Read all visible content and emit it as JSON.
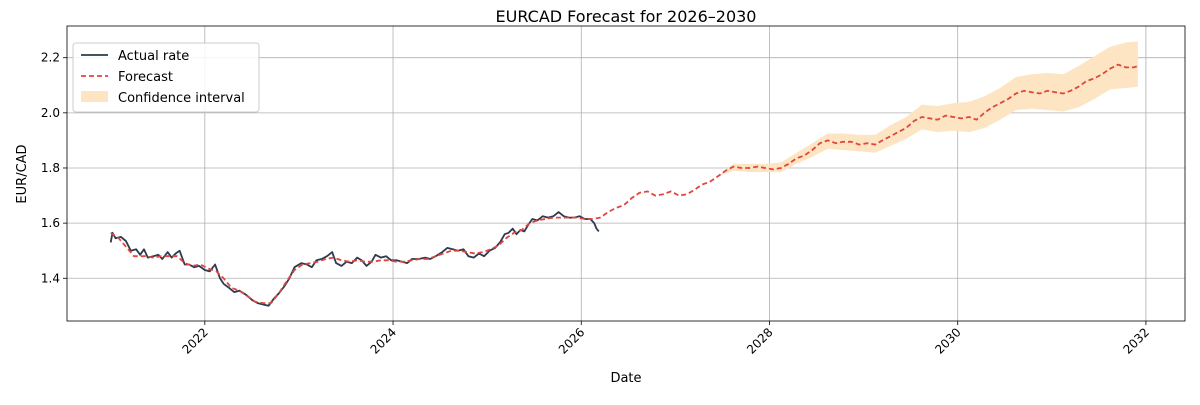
{
  "chart_data": {
    "type": "line",
    "title": "EURCAD Forecast for 2026–2030",
    "xlabel": "Date",
    "ylabel": "EUR/CAD",
    "x_axis_type": "date",
    "xlim": [
      "2020-07-15",
      "2032-06-01"
    ],
    "ylim": [
      1.245,
      2.315
    ],
    "x_ticks": [
      "2022",
      "2024",
      "2026",
      "2028",
      "2030",
      "2032"
    ],
    "y_ticks": [
      "1.4",
      "1.6",
      "1.8",
      "2.0",
      "2.2"
    ],
    "y_tick_values": [
      1.4,
      1.6,
      1.8,
      2.0,
      2.2
    ],
    "grid": true,
    "legend_position": "upper-left",
    "legend": [
      "Actual rate",
      "Forecast",
      "Confidence interval"
    ],
    "colors": {
      "actual": "#2d3a4f",
      "forecast": "#e0463d",
      "confidence": "#fde5c4"
    },
    "series": [
      {
        "name": "Actual rate",
        "style": "solid",
        "points": [
          [
            "2021-01-01",
            1.53
          ],
          [
            "2021-01-08",
            1.565
          ],
          [
            "2021-01-20",
            1.545
          ],
          [
            "2021-02-10",
            1.55
          ],
          [
            "2021-03-01",
            1.535
          ],
          [
            "2021-03-20",
            1.5
          ],
          [
            "2021-04-10",
            1.505
          ],
          [
            "2021-04-25",
            1.485
          ],
          [
            "2021-05-10",
            1.505
          ],
          [
            "2021-05-25",
            1.475
          ],
          [
            "2021-06-15",
            1.48
          ],
          [
            "2021-07-05",
            1.485
          ],
          [
            "2021-07-20",
            1.47
          ],
          [
            "2021-08-10",
            1.495
          ],
          [
            "2021-08-25",
            1.475
          ],
          [
            "2021-09-10",
            1.49
          ],
          [
            "2021-09-25",
            1.5
          ],
          [
            "2021-10-15",
            1.45
          ],
          [
            "2021-11-01",
            1.45
          ],
          [
            "2021-11-20",
            1.44
          ],
          [
            "2021-12-10",
            1.445
          ],
          [
            "2022-01-01",
            1.43
          ],
          [
            "2022-01-20",
            1.425
          ],
          [
            "2022-02-10",
            1.45
          ],
          [
            "2022-03-01",
            1.4
          ],
          [
            "2022-03-15",
            1.38
          ],
          [
            "2022-04-05",
            1.365
          ],
          [
            "2022-04-25",
            1.35
          ],
          [
            "2022-05-15",
            1.355
          ],
          [
            "2022-06-10",
            1.34
          ],
          [
            "2022-07-05",
            1.32
          ],
          [
            "2022-07-25",
            1.31
          ],
          [
            "2022-08-15",
            1.305
          ],
          [
            "2022-09-05",
            1.3
          ],
          [
            "2022-09-25",
            1.325
          ],
          [
            "2022-10-15",
            1.345
          ],
          [
            "2022-11-05",
            1.37
          ],
          [
            "2022-11-25",
            1.4
          ],
          [
            "2022-12-15",
            1.44
          ],
          [
            "2023-01-10",
            1.455
          ],
          [
            "2023-02-01",
            1.45
          ],
          [
            "2023-02-20",
            1.44
          ],
          [
            "2023-03-10",
            1.465
          ],
          [
            "2023-03-30",
            1.47
          ],
          [
            "2023-04-20",
            1.48
          ],
          [
            "2023-05-10",
            1.495
          ],
          [
            "2023-05-25",
            1.455
          ],
          [
            "2023-06-15",
            1.445
          ],
          [
            "2023-07-05",
            1.46
          ],
          [
            "2023-07-25",
            1.455
          ],
          [
            "2023-08-15",
            1.475
          ],
          [
            "2023-09-01",
            1.465
          ],
          [
            "2023-09-20",
            1.445
          ],
          [
            "2023-10-10",
            1.46
          ],
          [
            "2023-10-25",
            1.485
          ],
          [
            "2023-11-15",
            1.475
          ],
          [
            "2023-12-05",
            1.48
          ],
          [
            "2023-12-25",
            1.465
          ],
          [
            "2024-01-15",
            1.465
          ],
          [
            "2024-02-05",
            1.46
          ],
          [
            "2024-02-25",
            1.455
          ],
          [
            "2024-03-15",
            1.47
          ],
          [
            "2024-04-10",
            1.47
          ],
          [
            "2024-05-05",
            1.475
          ],
          [
            "2024-05-25",
            1.47
          ],
          [
            "2024-06-15",
            1.48
          ],
          [
            "2024-07-10",
            1.495
          ],
          [
            "2024-07-30",
            1.51
          ],
          [
            "2024-08-20",
            1.505
          ],
          [
            "2024-09-10",
            1.5
          ],
          [
            "2024-10-01",
            1.505
          ],
          [
            "2024-10-20",
            1.48
          ],
          [
            "2024-11-10",
            1.475
          ],
          [
            "2024-11-30",
            1.49
          ],
          [
            "2024-12-20",
            1.48
          ],
          [
            "2025-01-10",
            1.5
          ],
          [
            "2025-02-01",
            1.51
          ],
          [
            "2025-02-20",
            1.53
          ],
          [
            "2025-03-10",
            1.56
          ],
          [
            "2025-03-25",
            1.565
          ],
          [
            "2025-04-10",
            1.58
          ],
          [
            "2025-04-25",
            1.56
          ],
          [
            "2025-05-10",
            1.575
          ],
          [
            "2025-05-25",
            1.57
          ],
          [
            "2025-06-10",
            1.595
          ],
          [
            "2025-06-25",
            1.615
          ],
          [
            "2025-07-15",
            1.61
          ],
          [
            "2025-08-05",
            1.625
          ],
          [
            "2025-08-25",
            1.62
          ],
          [
            "2025-09-15",
            1.625
          ],
          [
            "2025-10-05",
            1.64
          ],
          [
            "2025-10-25",
            1.625
          ],
          [
            "2025-11-15",
            1.62
          ],
          [
            "2025-12-05",
            1.62
          ],
          [
            "2025-12-25",
            1.625
          ],
          [
            "2026-01-15",
            1.615
          ],
          [
            "2026-02-05",
            1.615
          ],
          [
            "2026-02-20",
            1.6
          ],
          [
            "2026-03-01",
            1.58
          ],
          [
            "2026-03-10",
            1.57
          ]
        ]
      },
      {
        "name": "Forecast",
        "style": "dashed",
        "points": [
          [
            "2021-01-01",
            1.565
          ],
          [
            "2021-02-01",
            1.545
          ],
          [
            "2021-03-01",
            1.515
          ],
          [
            "2021-04-01",
            1.48
          ],
          [
            "2021-05-15",
            1.48
          ],
          [
            "2021-06-15",
            1.475
          ],
          [
            "2021-07-15",
            1.48
          ],
          [
            "2021-08-15",
            1.48
          ],
          [
            "2021-09-15",
            1.48
          ],
          [
            "2021-10-15",
            1.455
          ],
          [
            "2021-11-15",
            1.445
          ],
          [
            "2021-12-15",
            1.45
          ],
          [
            "2022-01-15",
            1.435
          ],
          [
            "2022-02-15",
            1.425
          ],
          [
            "2022-03-15",
            1.4
          ],
          [
            "2022-04-15",
            1.365
          ],
          [
            "2022-05-15",
            1.355
          ],
          [
            "2022-06-15",
            1.335
          ],
          [
            "2022-07-15",
            1.315
          ],
          [
            "2022-08-15",
            1.31
          ],
          [
            "2022-09-15",
            1.31
          ],
          [
            "2022-10-15",
            1.345
          ],
          [
            "2022-11-15",
            1.39
          ],
          [
            "2022-12-15",
            1.43
          ],
          [
            "2023-01-15",
            1.45
          ],
          [
            "2023-02-15",
            1.455
          ],
          [
            "2023-03-15",
            1.46
          ],
          [
            "2023-04-15",
            1.47
          ],
          [
            "2023-05-15",
            1.475
          ],
          [
            "2023-06-15",
            1.465
          ],
          [
            "2023-07-15",
            1.46
          ],
          [
            "2023-08-15",
            1.465
          ],
          [
            "2023-09-15",
            1.46
          ],
          [
            "2023-10-15",
            1.46
          ],
          [
            "2023-11-15",
            1.465
          ],
          [
            "2023-12-15",
            1.465
          ],
          [
            "2024-01-15",
            1.46
          ],
          [
            "2024-02-15",
            1.46
          ],
          [
            "2024-03-15",
            1.465
          ],
          [
            "2024-04-15",
            1.47
          ],
          [
            "2024-05-15",
            1.47
          ],
          [
            "2024-06-15",
            1.48
          ],
          [
            "2024-07-15",
            1.49
          ],
          [
            "2024-08-15",
            1.5
          ],
          [
            "2024-09-15",
            1.5
          ],
          [
            "2024-10-15",
            1.495
          ],
          [
            "2024-11-15",
            1.49
          ],
          [
            "2024-12-15",
            1.495
          ],
          [
            "2025-01-15",
            1.505
          ],
          [
            "2025-02-15",
            1.52
          ],
          [
            "2025-03-15",
            1.545
          ],
          [
            "2025-04-15",
            1.565
          ],
          [
            "2025-05-15",
            1.575
          ],
          [
            "2025-06-15",
            1.6
          ],
          [
            "2025-07-15",
            1.61
          ],
          [
            "2025-08-15",
            1.615
          ],
          [
            "2025-09-15",
            1.62
          ],
          [
            "2025-10-15",
            1.62
          ],
          [
            "2025-11-15",
            1.62
          ],
          [
            "2025-12-15",
            1.62
          ],
          [
            "2026-01-15",
            1.615
          ],
          [
            "2026-02-15",
            1.615
          ],
          [
            "2026-03-15",
            1.62
          ],
          [
            "2026-04-15",
            1.64
          ],
          [
            "2026-05-15",
            1.655
          ],
          [
            "2026-06-15",
            1.665
          ],
          [
            "2026-07-15",
            1.69
          ],
          [
            "2026-08-15",
            1.71
          ],
          [
            "2026-09-15",
            1.715
          ],
          [
            "2026-10-15",
            1.7
          ],
          [
            "2026-11-15",
            1.705
          ],
          [
            "2026-12-15",
            1.715
          ],
          [
            "2027-01-15",
            1.7
          ],
          [
            "2027-02-15",
            1.705
          ],
          [
            "2027-03-15",
            1.72
          ],
          [
            "2027-04-15",
            1.74
          ],
          [
            "2027-05-15",
            1.75
          ],
          [
            "2027-06-15",
            1.77
          ],
          [
            "2027-07-15",
            1.79
          ],
          [
            "2027-08-15",
            1.805
          ],
          [
            "2027-09-15",
            1.8
          ],
          [
            "2027-10-15",
            1.8
          ],
          [
            "2027-11-15",
            1.805
          ],
          [
            "2027-12-15",
            1.8
          ],
          [
            "2028-01-15",
            1.795
          ],
          [
            "2028-02-15",
            1.8
          ],
          [
            "2028-03-15",
            1.815
          ],
          [
            "2028-04-15",
            1.835
          ],
          [
            "2028-05-15",
            1.845
          ],
          [
            "2028-06-15",
            1.865
          ],
          [
            "2028-07-15",
            1.89
          ],
          [
            "2028-08-15",
            1.9
          ],
          [
            "2028-09-15",
            1.89
          ],
          [
            "2028-10-15",
            1.895
          ],
          [
            "2028-11-15",
            1.895
          ],
          [
            "2028-12-15",
            1.885
          ],
          [
            "2029-01-15",
            1.89
          ],
          [
            "2029-02-15",
            1.885
          ],
          [
            "2029-03-15",
            1.9
          ],
          [
            "2029-04-15",
            1.915
          ],
          [
            "2029-05-15",
            1.93
          ],
          [
            "2029-06-15",
            1.945
          ],
          [
            "2029-07-15",
            1.97
          ],
          [
            "2029-08-15",
            1.985
          ],
          [
            "2029-09-15",
            1.98
          ],
          [
            "2029-10-15",
            1.975
          ],
          [
            "2029-11-15",
            1.99
          ],
          [
            "2029-12-15",
            1.985
          ],
          [
            "2030-01-15",
            1.98
          ],
          [
            "2030-02-15",
            1.985
          ],
          [
            "2030-03-15",
            1.975
          ],
          [
            "2030-04-15",
            2.0
          ],
          [
            "2030-05-15",
            2.02
          ],
          [
            "2030-06-15",
            2.035
          ],
          [
            "2030-07-15",
            2.05
          ],
          [
            "2030-08-15",
            2.07
          ],
          [
            "2030-09-15",
            2.08
          ],
          [
            "2030-10-15",
            2.075
          ],
          [
            "2030-11-15",
            2.07
          ],
          [
            "2030-12-15",
            2.08
          ],
          [
            "2031-01-15",
            2.075
          ],
          [
            "2031-02-15",
            2.07
          ],
          [
            "2031-03-15",
            2.08
          ],
          [
            "2031-04-15",
            2.095
          ],
          [
            "2031-05-15",
            2.115
          ],
          [
            "2031-06-15",
            2.125
          ],
          [
            "2031-07-15",
            2.14
          ],
          [
            "2031-08-15",
            2.16
          ],
          [
            "2031-09-15",
            2.175
          ],
          [
            "2031-10-15",
            2.165
          ],
          [
            "2031-11-15",
            2.165
          ],
          [
            "2031-12-01",
            2.17
          ]
        ]
      }
    ],
    "confidence_interval": {
      "name": "Confidence interval",
      "points": [
        [
          "2027-06-15",
          1.77,
          1.77
        ],
        [
          "2027-08-15",
          1.79,
          1.815
        ],
        [
          "2027-10-15",
          1.785,
          1.815
        ],
        [
          "2027-12-15",
          1.785,
          1.815
        ],
        [
          "2028-02-15",
          1.785,
          1.82
        ],
        [
          "2028-04-15",
          1.815,
          1.855
        ],
        [
          "2028-06-15",
          1.84,
          1.89
        ],
        [
          "2028-08-15",
          1.87,
          1.925
        ],
        [
          "2028-10-15",
          1.865,
          1.925
        ],
        [
          "2028-12-15",
          1.86,
          1.92
        ],
        [
          "2029-02-15",
          1.855,
          1.92
        ],
        [
          "2029-04-15",
          1.88,
          1.955
        ],
        [
          "2029-06-15",
          1.905,
          1.985
        ],
        [
          "2029-08-15",
          1.94,
          2.03
        ],
        [
          "2029-10-15",
          1.93,
          2.025
        ],
        [
          "2029-12-15",
          1.935,
          2.035
        ],
        [
          "2030-02-15",
          1.93,
          2.04
        ],
        [
          "2030-04-15",
          1.945,
          2.06
        ],
        [
          "2030-06-15",
          1.975,
          2.09
        ],
        [
          "2030-08-15",
          2.01,
          2.13
        ],
        [
          "2030-10-15",
          2.015,
          2.14
        ],
        [
          "2030-12-15",
          2.01,
          2.145
        ],
        [
          "2031-02-15",
          2.005,
          2.14
        ],
        [
          "2031-04-15",
          2.02,
          2.17
        ],
        [
          "2031-06-15",
          2.05,
          2.205
        ],
        [
          "2031-08-15",
          2.085,
          2.24
        ],
        [
          "2031-10-15",
          2.09,
          2.255
        ],
        [
          "2031-12-01",
          2.095,
          2.26
        ]
      ]
    }
  }
}
